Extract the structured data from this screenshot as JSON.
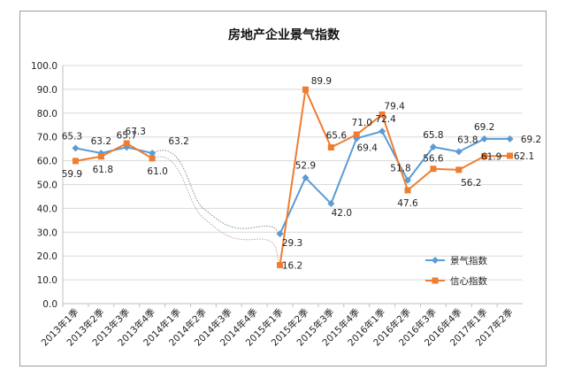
{
  "chart_data": {
    "type": "line",
    "title": "房地产企业景气指数",
    "categories": [
      "2013年1季",
      "2013年2季",
      "2013年3季",
      "2013年4季",
      "2014年1季",
      "2014年2季",
      "2014年3季",
      "2014年4季",
      "2015年1季",
      "2015年2季",
      "2015年3季",
      "2015年4季",
      "2016年1季",
      "2016年2季",
      "2016年3季",
      "2016年4季",
      "2017年1季",
      "2017年2季"
    ],
    "ylim": [
      0,
      100
    ],
    "yticks": [
      "0.0",
      "10.0",
      "20.0",
      "30.0",
      "40.0",
      "50.0",
      "60.0",
      "70.0",
      "80.0",
      "90.0",
      "100.0"
    ],
    "xlabel": "",
    "ylabel": "",
    "series": [
      {
        "name": "景气指数",
        "color": "#5b9bd5",
        "marker": "diamond",
        "values": [
          65.3,
          63.2,
          65.7,
          63.2,
          null,
          null,
          null,
          null,
          29.3,
          52.9,
          42.0,
          69.4,
          72.4,
          51.8,
          65.8,
          63.8,
          69.2,
          69.2
        ],
        "labels": [
          "65.3",
          "63.2",
          "65.7",
          "63.2",
          "",
          "",
          "",
          "",
          "29.3",
          "52.9",
          "42.0",
          "69.4",
          "72.4",
          "51.8",
          "65.8",
          "63.8",
          "69.2",
          "69.2"
        ]
      },
      {
        "name": "信心指数",
        "color": "#ed7d31",
        "marker": "square",
        "values": [
          59.9,
          61.8,
          67.3,
          61.0,
          null,
          null,
          null,
          null,
          16.2,
          89.9,
          65.6,
          71.0,
          79.4,
          47.6,
          56.6,
          56.2,
          61.9,
          62.1
        ],
        "labels": [
          "59.9",
          "61.8",
          "67.3",
          "61.0",
          "",
          "",
          "",
          "",
          "16.2",
          "89.9",
          "65.6",
          "71.0",
          "79.4",
          "47.6",
          "56.6",
          "56.2",
          "61.9",
          "62.1"
        ]
      }
    ],
    "annotations": [
      "hand-drawn dotted curves bridge the 2014 gap between 2013年4季 and 2015年1季"
    ],
    "legend": "right"
  }
}
